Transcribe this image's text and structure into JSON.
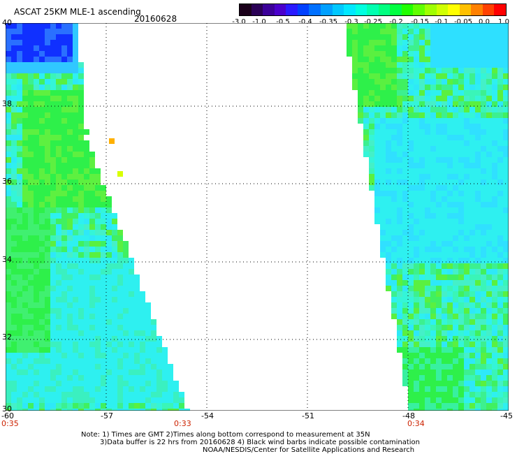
{
  "header": {
    "title": "ASCAT 25KM MLE-1 ascending",
    "date": "20160628"
  },
  "colorbar": {
    "labels": [
      "-3.0",
      "-1.0",
      "-0.5",
      "-0.4",
      "-0.35",
      "-0.3",
      "-0.25",
      "-0.2",
      "-0.15",
      "-0.1",
      "-0.05",
      "0.0",
      "1.0"
    ],
    "colors": [
      "#1a001a",
      "#2a0055",
      "#3b0099",
      "#4a00cc",
      "#2a1aff",
      "#0040ff",
      "#0070ff",
      "#00a0ff",
      "#00c8ff",
      "#00e8ff",
      "#00ffe0",
      "#00ffb0",
      "#00ff80",
      "#00ff40",
      "#20ff00",
      "#60ff00",
      "#a0ff00",
      "#d0ff00",
      "#ffff00",
      "#ffc000",
      "#ff8000",
      "#ff4000",
      "#ff0000"
    ]
  },
  "map": {
    "lat_labels": [
      "40",
      "38",
      "36",
      "34",
      "32",
      "30"
    ],
    "lon_labels": [
      "-60",
      "-57",
      "-54",
      "-51",
      "-48",
      "-45"
    ],
    "time_labels": [
      "0:35",
      "0:33",
      "0:34"
    ],
    "lat_range": [
      30,
      40
    ],
    "lon_range": [
      -60,
      -45
    ],
    "colors": {
      "swath_base": "#2af5a0",
      "cyan": "#2ef0f0",
      "green": "#2ef04a",
      "blue": "#1030ff",
      "yellow": "#d8ff00"
    }
  },
  "notes": {
    "line1": "Note: 1) Times are GMT 2)Times along bottom correspond to measurement at 35N",
    "line2": "3)Data buffer is 22 hrs from 20160628 4) Black wind barbs indicate possible contamination",
    "line3": "NOAA/NESDIS/Center for Satellite Applications and Research"
  }
}
